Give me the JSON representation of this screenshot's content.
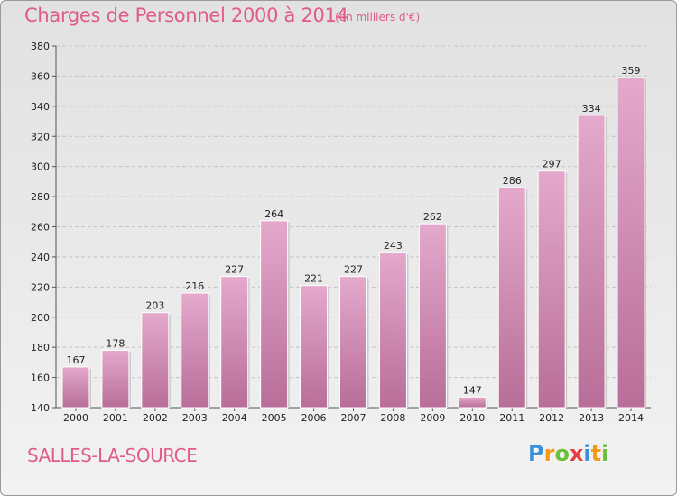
{
  "chart_data": {
    "type": "bar",
    "title": "Charges de Personnel 2000 à 2014",
    "subtitle": "(en milliers d'€)",
    "categories": [
      "2000",
      "2001",
      "2002",
      "2003",
      "2004",
      "2005",
      "2006",
      "2007",
      "2008",
      "2009",
      "2010",
      "2011",
      "2012",
      "2013",
      "2014"
    ],
    "values": [
      167,
      178,
      203,
      216,
      227,
      264,
      221,
      227,
      243,
      262,
      147,
      286,
      297,
      334,
      359
    ],
    "ylim": [
      140,
      380
    ],
    "yticks": [
      140,
      160,
      180,
      200,
      220,
      240,
      260,
      280,
      300,
      320,
      340,
      360,
      380
    ],
    "grid": true,
    "bar_color_top": "#e4a9cc",
    "bar_color_bottom": "#b86e98"
  },
  "commune": "SALLES-LA-SOURCE",
  "logo": {
    "letters": [
      "P",
      "r",
      "o",
      "x",
      "i",
      "t",
      "i"
    ],
    "colors": [
      "#3a8fd8",
      "#f39a1c",
      "#6cbf3a",
      "#e83e3e",
      "#3a8fd8",
      "#f39a1c",
      "#6cbf3a"
    ]
  },
  "colors": {
    "accent": "#e05a8a"
  }
}
